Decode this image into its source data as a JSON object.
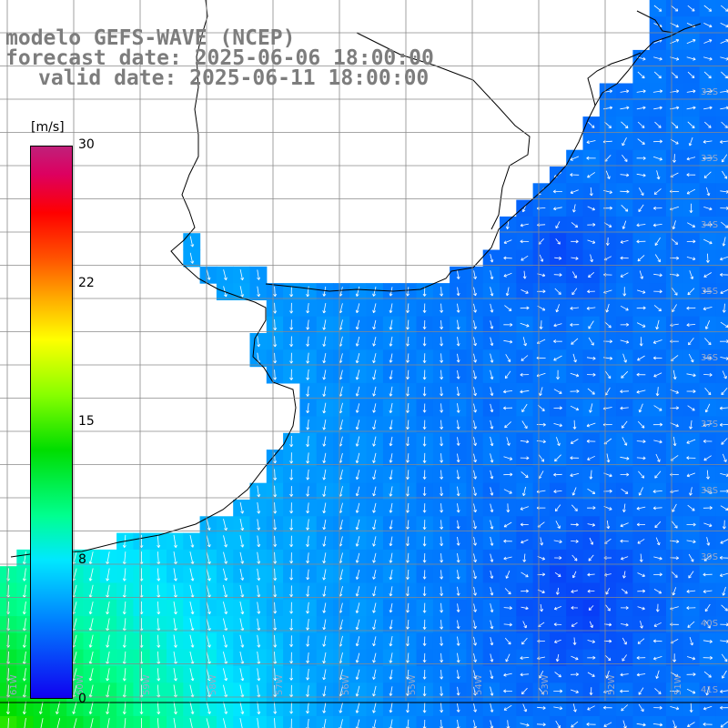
{
  "title": {
    "line1": "modelo GEFS-WAVE (NCEP)",
    "line2": "forecast date: 2025-06-06 18:00:00",
    "line3": "valid date: 2025-06-11 18:00:00"
  },
  "colorbar": {
    "unit": "[m/s]",
    "ticks": [
      "30",
      "22",
      "15",
      "8",
      "0"
    ],
    "tick_values": [
      30,
      22,
      15,
      8,
      0
    ],
    "range": [
      0,
      30
    ]
  },
  "lat_labels": [
    "32S",
    "33S",
    "34S",
    "35S",
    "36S",
    "37S",
    "38S",
    "39S",
    "40S",
    "41S"
  ],
  "lon_labels": [
    "61W",
    "60W",
    "59W",
    "58W",
    "57W",
    "56W",
    "55W",
    "54W",
    "53W",
    "52W",
    "51W"
  ],
  "colors": {
    "land": "#ffffff",
    "grid": "#8a8a8a",
    "coast": "#000000",
    "arrow": "#ffffff",
    "title": "#7d7d7d"
  }
}
